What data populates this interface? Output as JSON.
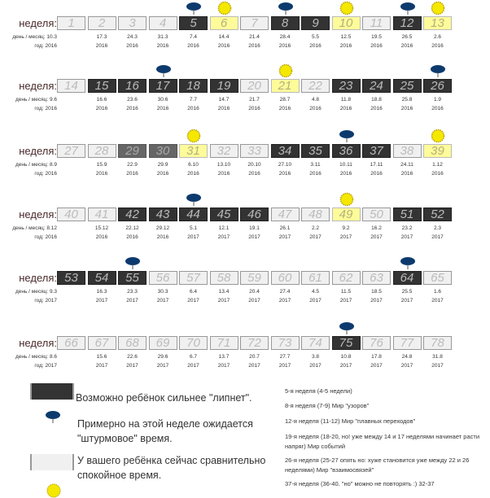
{
  "labels": {
    "week": "неделя:",
    "daymonth": "день / месяц:",
    "year": "год:"
  },
  "colors": {
    "dark": "#333333",
    "light": "#f0f0f0",
    "medium": "#666666",
    "yellow": "#fdfb9a",
    "cloud": "#0d3a6e",
    "sun": "#f5e800"
  },
  "rows": [
    {
      "cells": [
        [
          "1",
          "10.3",
          "2016",
          "l",
          ""
        ],
        [
          "2",
          "17.3",
          "2016",
          "l",
          ""
        ],
        [
          "3",
          "24.3",
          "2016",
          "l",
          ""
        ],
        [
          "4",
          "31.3",
          "2016",
          "l",
          ""
        ],
        [
          "5",
          "7.4",
          "2016",
          "d",
          "cloud"
        ],
        [
          "6",
          "14.4",
          "2016",
          "y",
          "sun"
        ],
        [
          "7",
          "21.4",
          "2016",
          "l",
          ""
        ],
        [
          "8",
          "28.4",
          "2016",
          "d",
          "cloud"
        ],
        [
          "9",
          "5.5",
          "2016",
          "d",
          ""
        ],
        [
          "10",
          "12.5",
          "2016",
          "y",
          "sun"
        ],
        [
          "11",
          "19.5",
          "2016",
          "l",
          ""
        ],
        [
          "12",
          "26.5",
          "2016",
          "d",
          "cloud"
        ],
        [
          "13",
          "2.6",
          "2016",
          "y",
          "sun"
        ]
      ]
    },
    {
      "cells": [
        [
          "14",
          "9.6",
          "2016",
          "l",
          ""
        ],
        [
          "15",
          "16.6",
          "2016",
          "d",
          ""
        ],
        [
          "16",
          "23.6",
          "2016",
          "d",
          ""
        ],
        [
          "17",
          "30.6",
          "2016",
          "d",
          "cloud"
        ],
        [
          "18",
          "7.7",
          "2016",
          "d",
          ""
        ],
        [
          "19",
          "14.7",
          "2016",
          "d",
          ""
        ],
        [
          "20",
          "21.7",
          "2016",
          "l",
          ""
        ],
        [
          "21",
          "28.7",
          "2016",
          "y",
          "sun"
        ],
        [
          "22",
          "4.8",
          "2016",
          "l",
          ""
        ],
        [
          "23",
          "11.8",
          "2016",
          "d",
          ""
        ],
        [
          "24",
          "18.8",
          "2016",
          "d",
          ""
        ],
        [
          "25",
          "25.8",
          "2016",
          "d",
          ""
        ],
        [
          "26",
          "1.9",
          "2016",
          "d",
          "cloud"
        ]
      ]
    },
    {
      "cells": [
        [
          "27",
          "8.9",
          "2016",
          "l",
          ""
        ],
        [
          "28",
          "15.9",
          "2016",
          "l",
          ""
        ],
        [
          "29",
          "22.9",
          "2016",
          "m",
          ""
        ],
        [
          "30",
          "29.9",
          "2016",
          "m",
          ""
        ],
        [
          "31",
          "6.10",
          "2016",
          "y",
          "sun"
        ],
        [
          "32",
          "13.10",
          "2016",
          "l",
          ""
        ],
        [
          "33",
          "20.10",
          "2016",
          "l",
          ""
        ],
        [
          "34",
          "27.10",
          "2016",
          "d",
          ""
        ],
        [
          "35",
          "3.11",
          "2016",
          "d",
          ""
        ],
        [
          "36",
          "10.11",
          "2016",
          "d",
          "cloud"
        ],
        [
          "37",
          "17.11",
          "2016",
          "d",
          ""
        ],
        [
          "38",
          "24.11",
          "2016",
          "l",
          ""
        ],
        [
          "39",
          "1.12",
          "2016",
          "y",
          "sun"
        ]
      ]
    },
    {
      "cells": [
        [
          "40",
          "8.12",
          "2016",
          "l",
          ""
        ],
        [
          "41",
          "15.12",
          "2016",
          "l",
          ""
        ],
        [
          "42",
          "22.12",
          "2016",
          "d",
          ""
        ],
        [
          "43",
          "29.12",
          "2016",
          "d",
          ""
        ],
        [
          "44",
          "5.1",
          "2017",
          "d",
          "cloud"
        ],
        [
          "45",
          "12.1",
          "2017",
          "d",
          ""
        ],
        [
          "46",
          "19.1",
          "2017",
          "d",
          ""
        ],
        [
          "47",
          "26.1",
          "2017",
          "l",
          ""
        ],
        [
          "48",
          "2.2",
          "2017",
          "l",
          ""
        ],
        [
          "49",
          "9.2",
          "2017",
          "y",
          "sun"
        ],
        [
          "50",
          "16.2",
          "2017",
          "l",
          ""
        ],
        [
          "51",
          "23.2",
          "2017",
          "d",
          ""
        ],
        [
          "52",
          "2.3",
          "2017",
          "d",
          ""
        ]
      ]
    },
    {
      "cells": [
        [
          "53",
          "9.3",
          "2017",
          "d",
          ""
        ],
        [
          "54",
          "16.3",
          "2017",
          "d",
          ""
        ],
        [
          "55",
          "23.3",
          "2017",
          "d",
          "cloud"
        ],
        [
          "56",
          "30.3",
          "2017",
          "l",
          ""
        ],
        [
          "57",
          "6.4",
          "2017",
          "l",
          ""
        ],
        [
          "58",
          "13.4",
          "2017",
          "l",
          ""
        ],
        [
          "59",
          "20.4",
          "2017",
          "l",
          ""
        ],
        [
          "60",
          "27.4",
          "2017",
          "l",
          ""
        ],
        [
          "61",
          "4.5",
          "2017",
          "l",
          ""
        ],
        [
          "62",
          "11.5",
          "2017",
          "l",
          ""
        ],
        [
          "63",
          "18.5",
          "2017",
          "l",
          ""
        ],
        [
          "64",
          "25.5",
          "2017",
          "d",
          "cloud"
        ],
        [
          "65",
          "1.6",
          "2017",
          "l",
          ""
        ]
      ]
    },
    {
      "cells": [
        [
          "66",
          "8.6",
          "2017",
          "l",
          ""
        ],
        [
          "67",
          "15.6",
          "2017",
          "l",
          ""
        ],
        [
          "68",
          "22.6",
          "2017",
          "l",
          ""
        ],
        [
          "69",
          "29.6",
          "2017",
          "l",
          ""
        ],
        [
          "70",
          "6.7",
          "2017",
          "l",
          ""
        ],
        [
          "71",
          "13.7",
          "2017",
          "l",
          ""
        ],
        [
          "72",
          "20.7",
          "2017",
          "l",
          ""
        ],
        [
          "73",
          "27.7",
          "2017",
          "l",
          ""
        ],
        [
          "74",
          "3.8",
          "2017",
          "l",
          ""
        ],
        [
          "75",
          "10.8",
          "2017",
          "d",
          "cloud"
        ],
        [
          "76",
          "17.8",
          "2017",
          "l",
          ""
        ],
        [
          "77",
          "24.8",
          "2017",
          "l",
          ""
        ],
        [
          "78",
          "31.8",
          "2017",
          "l",
          ""
        ]
      ]
    }
  ],
  "legend": {
    "dark": "Возможно ребёнок сильнее \"липнет\".",
    "cloud": "Примерно на этой неделе ожидается \"штурмовое\" время.",
    "light": "У вашего ребёнка сейчас сравнительно спокойное время."
  },
  "notes": [
    "5-я неделя (4-5 недели)",
    "8-я неделя (7-9) Мир \"узоров\"",
    "12-я неделя (11-12) Мир \"плавных переходов\"",
    "19-я неделя (18-20, но! уже между 14 и 17 неделями начинает расти напряг) Мир событий",
    "26-я неделя (25-27 опять но: хуже становится уже между 22 и 26 неделями) Мир \"взаимосвязей\"",
    "37-я неделя (36-40. \"но\" можно не повторять :) 32-37"
  ]
}
